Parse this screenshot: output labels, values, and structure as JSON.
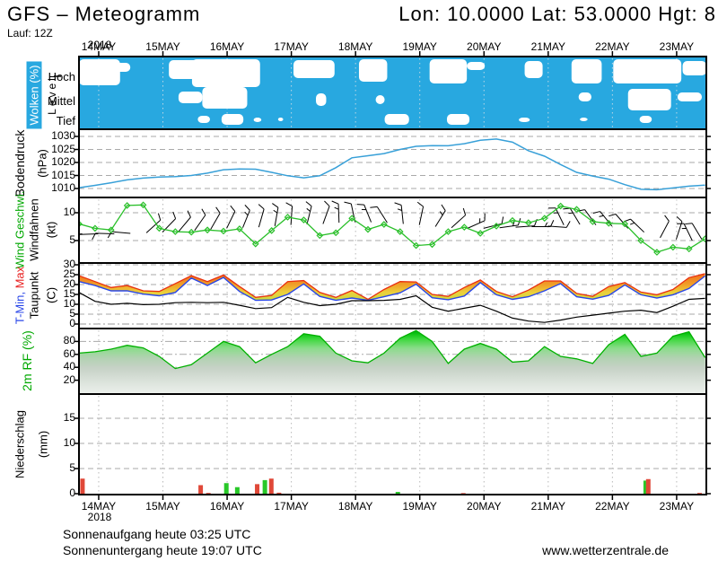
{
  "header": {
    "title": "GFS – Meteogramm",
    "coords": "Lon: 10.0000 Lat: 53.0000 Hgt: 8",
    "run": "Lauf: 12Z"
  },
  "footer": {
    "sunrise": "Sonnenaufgang heute 03:25 UTC",
    "sunset": "Sonnenuntergang heute 19:07 UTC",
    "site": "www.wetterzentrale.de"
  },
  "axis": {
    "year": "2018",
    "days": [
      "14MAY",
      "15MAY",
      "16MAY",
      "17MAY",
      "18MAY",
      "19MAY",
      "20MAY",
      "21MAY",
      "22MAY",
      "23MAY"
    ]
  },
  "colors": {
    "cloud_blue": "#28a8e0",
    "pressure_line": "#38a0d8",
    "wind_green": "#2abf2a",
    "tmin_blue": "#2846e8",
    "tmax_red": "#e83010",
    "dew_black": "#000000",
    "rh_green_edge": "#00b000",
    "precip_red": "#e04838",
    "precip_green": "#28c828",
    "grid_gray": "#aaaaaa",
    "label_green": "#00a800"
  },
  "panels": {
    "clouds": {
      "label": "Wolken (%)",
      "level_label": "Level",
      "rows": [
        "Hoch",
        "Mittel",
        "Tief"
      ]
    },
    "pressure": {
      "label": "Bodendruck",
      "unit": "(hPa)"
    },
    "wind": {
      "label": "Wind Geschwi.",
      "label2": "Windfahnen",
      "unit": "(kt)"
    },
    "temp": {
      "label_min": "T-Min,",
      "label_max": "Max",
      "label2": "Taupunkt",
      "unit": "(C)"
    },
    "rh": {
      "label": "2m RF (%)"
    },
    "precip": {
      "label": "Niederschlag",
      "unit": "(mm)"
    }
  },
  "chart_data": [
    {
      "name": "clouds",
      "type": "area",
      "title": "Wolken (%)",
      "rows": [
        "Hoch",
        "Mittel",
        "Tief"
      ],
      "blobs": [
        [
          "h",
          0.0,
          0.64,
          66,
          95
        ],
        [
          "h",
          0.55,
          0.8,
          70,
          80
        ],
        [
          "h",
          1.4,
          1.86,
          67,
          88
        ],
        [
          "h",
          1.76,
          2.82,
          66,
          97
        ],
        [
          "m",
          1.92,
          2.62,
          97,
          121
        ],
        [
          "m",
          1.55,
          1.92,
          102,
          115
        ],
        [
          "t",
          1.85,
          2.04,
          129,
          137
        ],
        [
          "t",
          2.22,
          2.56,
          127,
          139
        ],
        [
          "t",
          2.72,
          2.84,
          131,
          136
        ],
        [
          "t",
          3.1,
          3.18,
          131,
          135
        ],
        [
          "h",
          3.34,
          3.98,
          67,
          87
        ],
        [
          "m",
          3.69,
          3.85,
          104,
          118
        ],
        [
          "h",
          4.36,
          4.8,
          66,
          91
        ],
        [
          "m",
          4.62,
          4.76,
          106,
          116
        ],
        [
          "t",
          4.76,
          5.14,
          127,
          139
        ],
        [
          "h",
          5.46,
          6.04,
          66,
          93
        ],
        [
          "h",
          6.04,
          6.32,
          69,
          78
        ],
        [
          "t",
          5.73,
          6.08,
          127,
          139
        ],
        [
          "h",
          6.94,
          7.22,
          68,
          87
        ],
        [
          "t",
          6.85,
          7.02,
          131,
          136
        ],
        [
          "h",
          7.67,
          8.14,
          66,
          93
        ],
        [
          "m",
          7.78,
          7.98,
          103,
          113
        ],
        [
          "t",
          7.8,
          7.92,
          131,
          135
        ],
        [
          "h",
          8.32,
          9.38,
          66,
          93
        ],
        [
          "m",
          8.55,
          9.22,
          99,
          123
        ],
        [
          "t",
          8.73,
          8.92,
          129,
          137
        ],
        [
          "m",
          9.32,
          9.7,
          103,
          113
        ],
        [
          "h",
          9.4,
          9.77,
          68,
          84
        ]
      ]
    },
    {
      "name": "pressure",
      "type": "line",
      "title": "Bodendruck (hPa)",
      "yticks": [
        1010,
        1015,
        1020,
        1025,
        1030
      ],
      "ylim": [
        1007,
        1033
      ],
      "t0": 0,
      "dt": 0.25,
      "v": [
        1010.3,
        1011.2,
        1012.2,
        1013.3,
        1014.0,
        1014.4,
        1014.6,
        1015.0,
        1015.9,
        1017.2,
        1017.5,
        1017.4,
        1016.2,
        1014.9,
        1014.1,
        1014.9,
        1018.0,
        1021.8,
        1022.6,
        1023.4,
        1025.0,
        1026.2,
        1026.5,
        1026.4,
        1027.2,
        1028.5,
        1029.0,
        1027.8,
        1024.5,
        1022.4,
        1019.2,
        1016.2,
        1014.8,
        1013.6,
        1011.5,
        1009.7,
        1009.5,
        1010.2,
        1010.9,
        1011.3
      ]
    },
    {
      "name": "wind",
      "type": "line",
      "title": "Wind Geschwi. / Windfahnen (kt)",
      "yticks": [
        5,
        10
      ],
      "ylim": [
        1,
        12.7
      ],
      "t0": 0,
      "dt": 0.25,
      "v": [
        8.0,
        7.2,
        6.9,
        11.3,
        11.4,
        7.2,
        6.6,
        6.5,
        6.9,
        6.7,
        7.1,
        4.4,
        6.8,
        9.2,
        8.7,
        5.9,
        6.4,
        9.0,
        7.0,
        7.9,
        6.6,
        4.1,
        4.3,
        6.6,
        7.4,
        6.3,
        7.6,
        8.6,
        8.2,
        9.0,
        11.2,
        10.6,
        8.4,
        8.1,
        8.0,
        5.0,
        2.9,
        3.8,
        3.5,
        5.3
      ],
      "barbs": [
        [
          0.05,
          6.2,
          185,
          1
        ],
        [
          0.3,
          6.2,
          182,
          1
        ],
        [
          0.55,
          6.2,
          178,
          1
        ],
        [
          0.8,
          6.3,
          175,
          1
        ],
        [
          1.05,
          6.4,
          42,
          1
        ],
        [
          1.3,
          6.5,
          46,
          1
        ],
        [
          1.55,
          6.6,
          50,
          1
        ],
        [
          1.8,
          6.8,
          55,
          1
        ],
        [
          2.05,
          7.0,
          60,
          1
        ],
        [
          2.3,
          7.2,
          64,
          1
        ],
        [
          2.55,
          7.3,
          68,
          2
        ],
        [
          2.8,
          7.4,
          74,
          1
        ],
        [
          3.05,
          7.6,
          80,
          2
        ],
        [
          3.3,
          7.8,
          86,
          1
        ],
        [
          3.55,
          7.9,
          76,
          2
        ],
        [
          3.8,
          8.0,
          70,
          1
        ],
        [
          4.05,
          8.2,
          92,
          2
        ],
        [
          4.3,
          8.3,
          102,
          1
        ],
        [
          4.55,
          8.3,
          112,
          2
        ],
        [
          4.8,
          8.2,
          122,
          1
        ],
        [
          5.05,
          8.0,
          96,
          2
        ],
        [
          5.3,
          7.8,
          78,
          1
        ],
        [
          5.55,
          7.5,
          58,
          2
        ],
        [
          5.8,
          7.3,
          42,
          1
        ],
        [
          6.05,
          7.2,
          24,
          2
        ],
        [
          6.3,
          7.2,
          14,
          1
        ],
        [
          6.55,
          7.3,
          8,
          2
        ],
        [
          6.8,
          7.4,
          4,
          1
        ],
        [
          7.05,
          7.5,
          0,
          2
        ],
        [
          7.3,
          7.6,
          356,
          1
        ],
        [
          7.55,
          7.8,
          116,
          2
        ],
        [
          7.8,
          7.9,
          121,
          2
        ],
        [
          8.05,
          7.8,
          126,
          1
        ],
        [
          8.3,
          7.6,
          129,
          2
        ],
        [
          8.55,
          7.2,
          131,
          1
        ],
        [
          8.8,
          6.5,
          136,
          2
        ],
        [
          9.05,
          5.5,
          62,
          1
        ],
        [
          9.3,
          5.2,
          72,
          1
        ],
        [
          9.55,
          5.0,
          116,
          2
        ],
        [
          9.7,
          5.2,
          121,
          1
        ]
      ]
    },
    {
      "name": "temperature",
      "type": "line",
      "title": "T-Min, Max / Taupunkt (C)",
      "yticks": [
        0,
        5,
        10,
        15,
        20,
        25,
        30
      ],
      "ylim": [
        -2,
        31
      ],
      "t0": 0,
      "dt": 0.25,
      "series": [
        {
          "name": "T-Max",
          "v": [
            24.5,
            21.5,
            18.5,
            19.5,
            16.8,
            16.5,
            20.5,
            24.5,
            21.5,
            24.8,
            19.0,
            13.5,
            14.5,
            21.5,
            22.0,
            16.0,
            13.5,
            17.0,
            12.5,
            17.5,
            21.5,
            21.3,
            15.0,
            14.0,
            18.5,
            22.3,
            16.5,
            13.8,
            17.2,
            21.8,
            21.8,
            15.5,
            14.0,
            19.0,
            21.0,
            16.2,
            14.8,
            17.5,
            23.5,
            25.5
          ]
        },
        {
          "name": "T-Min",
          "v": [
            21.5,
            19.5,
            16.8,
            16.8,
            15.2,
            14.3,
            16.0,
            23.3,
            19.5,
            23.6,
            16.5,
            12.0,
            12.2,
            15.0,
            20.3,
            14.0,
            12.0,
            13.2,
            12.0,
            13.8,
            15.8,
            20.2,
            13.3,
            12.3,
            14.2,
            21.0,
            14.8,
            12.5,
            13.8,
            16.8,
            20.5,
            13.8,
            12.6,
            14.5,
            19.8,
            14.8,
            13.2,
            14.8,
            18.0,
            24.3
          ]
        },
        {
          "name": "Taupunkt",
          "v": [
            16.0,
            11.5,
            10.0,
            10.5,
            9.8,
            10.0,
            10.8,
            11.0,
            10.8,
            11.0,
            9.5,
            7.8,
            8.3,
            13.5,
            11.0,
            9.3,
            10.0,
            11.8,
            11.8,
            12.0,
            12.5,
            14.3,
            8.5,
            6.5,
            8.0,
            9.5,
            6.5,
            3.0,
            1.5,
            0.8,
            2.0,
            3.5,
            4.5,
            5.5,
            6.5,
            7.0,
            5.8,
            9.0,
            12.5,
            13.0
          ]
        }
      ]
    },
    {
      "name": "humidity",
      "type": "area",
      "title": "2m RF (%)",
      "yticks": [
        20,
        40,
        60,
        80
      ],
      "ylim": [
        0,
        100
      ],
      "t0": 0,
      "dt": 0.25,
      "v": [
        62,
        64,
        68,
        74,
        70,
        57,
        38,
        44,
        62,
        80,
        72,
        47,
        60,
        72,
        92,
        88,
        62,
        50,
        47,
        62,
        85,
        97,
        80,
        46,
        68,
        77,
        68,
        48,
        50,
        72,
        57,
        53,
        46,
        75,
        91,
        57,
        62,
        88,
        95,
        55
      ]
    },
    {
      "name": "precip",
      "type": "bar",
      "title": "Niederschlag (mm)",
      "yticks": [
        0,
        5,
        10,
        15
      ],
      "ylim": [
        0,
        19.8
      ],
      "bars": [
        [
          0.02,
          3.0,
          "r"
        ],
        [
          1.86,
          1.7,
          "r"
        ],
        [
          1.98,
          0.15,
          "r"
        ],
        [
          2.26,
          2.1,
          "g"
        ],
        [
          2.43,
          1.3,
          "g"
        ],
        [
          2.74,
          1.9,
          "r"
        ],
        [
          2.86,
          2.7,
          "g"
        ],
        [
          2.96,
          3.0,
          "r"
        ],
        [
          3.08,
          0.2,
          "r"
        ],
        [
          4.93,
          0.35,
          "g"
        ],
        [
          5.95,
          0.12,
          "r"
        ],
        [
          8.79,
          2.6,
          "g"
        ],
        [
          8.83,
          2.9,
          "r"
        ],
        [
          9.63,
          0.15,
          "r"
        ]
      ]
    }
  ]
}
